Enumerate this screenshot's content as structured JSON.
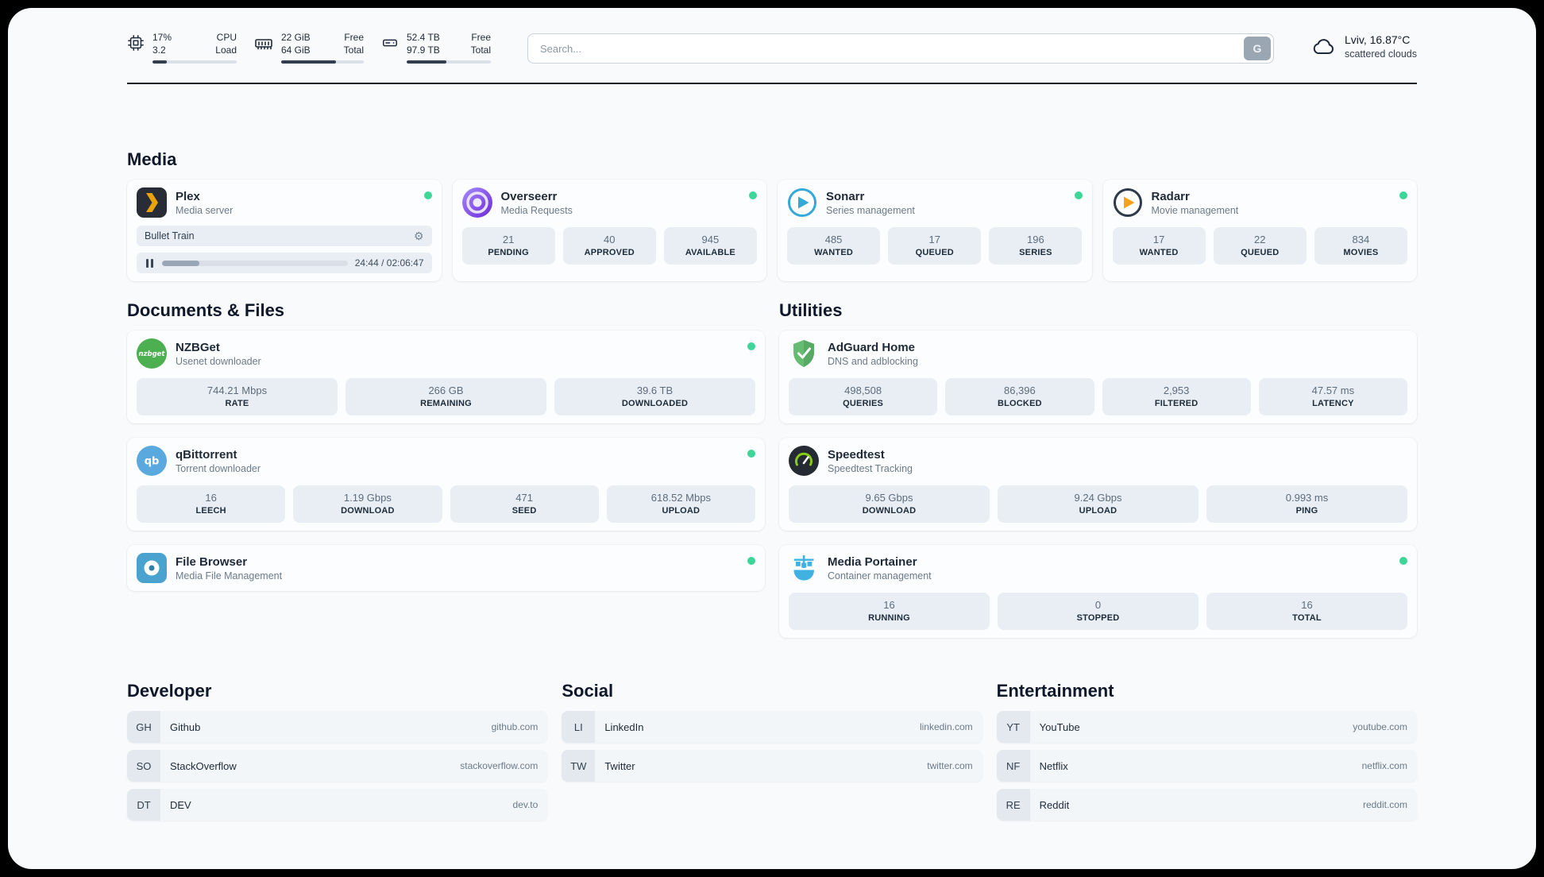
{
  "colors": {
    "status_online": "#3ed598"
  },
  "header": {
    "stats": [
      {
        "icon": "cpu-icon",
        "value_top": "17%",
        "value_bottom": "3.2",
        "label_top": "CPU",
        "label_bottom": "Load",
        "progress": 17
      },
      {
        "icon": "memory-icon",
        "value_top": "22 GiB",
        "value_bottom": "64 GiB",
        "label_top": "Free",
        "label_bottom": "Total",
        "progress": 66
      },
      {
        "icon": "disk-icon",
        "value_top": "52.4 TB",
        "value_bottom": "97.9 TB",
        "label_top": "Free",
        "label_bottom": "Total",
        "progress": 47
      }
    ],
    "search": {
      "placeholder": "Search...",
      "button_label": "G"
    },
    "weather": {
      "icon": "cloud-icon",
      "location": "Lviv, 16.87°C",
      "condition": "scattered clouds"
    }
  },
  "media": {
    "title": "Media",
    "plex": {
      "icon": "plex-icon",
      "title": "Plex",
      "subtitle": "Media server",
      "now_playing": "Bullet Train",
      "time": "24:44 / 02:06:47",
      "progress_percent": 20
    },
    "overseerr": {
      "icon": "overseerr-icon",
      "title": "Overseerr",
      "subtitle": "Media Requests",
      "stats": [
        {
          "value": "21",
          "label": "PENDING"
        },
        {
          "value": "40",
          "label": "APPROVED"
        },
        {
          "value": "945",
          "label": "AVAILABLE"
        }
      ]
    },
    "sonarr": {
      "icon": "sonarr-icon",
      "title": "Sonarr",
      "subtitle": "Series management",
      "stats": [
        {
          "value": "485",
          "label": "WANTED"
        },
        {
          "value": "17",
          "label": "QUEUED"
        },
        {
          "value": "196",
          "label": "SERIES"
        }
      ]
    },
    "radarr": {
      "icon": "radarr-icon",
      "title": "Radarr",
      "subtitle": "Movie management",
      "stats": [
        {
          "value": "17",
          "label": "WANTED"
        },
        {
          "value": "22",
          "label": "QUEUED"
        },
        {
          "value": "834",
          "label": "MOVIES"
        }
      ]
    }
  },
  "documents": {
    "title": "Documents & Files",
    "nzbget": {
      "icon": "nzbget-icon",
      "title": "NZBGet",
      "subtitle": "Usenet downloader",
      "stats": [
        {
          "value": "744.21 Mbps",
          "label": "RATE"
        },
        {
          "value": "266 GB",
          "label": "REMAINING"
        },
        {
          "value": "39.6 TB",
          "label": "DOWNLOADED"
        }
      ]
    },
    "qbittorrent": {
      "icon": "qbittorrent-icon",
      "title": "qBittorrent",
      "subtitle": "Torrent downloader",
      "stats": [
        {
          "value": "16",
          "label": "LEECH"
        },
        {
          "value": "1.19 Gbps",
          "label": "DOWNLOAD"
        },
        {
          "value": "471",
          "label": "SEED"
        },
        {
          "value": "618.52 Mbps",
          "label": "UPLOAD"
        }
      ]
    },
    "filebrowser": {
      "icon": "filebrowser-icon",
      "title": "File Browser",
      "subtitle": "Media File Management"
    }
  },
  "utilities": {
    "title": "Utilities",
    "adguard": {
      "icon": "adguard-icon",
      "title": "AdGuard Home",
      "subtitle": "DNS and adblocking",
      "stats": [
        {
          "value": "498,508",
          "label": "QUERIES"
        },
        {
          "value": "86,396",
          "label": "BLOCKED"
        },
        {
          "value": "2,953",
          "label": "FILTERED"
        },
        {
          "value": "47.57 ms",
          "label": "LATENCY"
        }
      ]
    },
    "speedtest": {
      "icon": "speedtest-icon",
      "title": "Speedtest",
      "subtitle": "Speedtest Tracking",
      "stats": [
        {
          "value": "9.65 Gbps",
          "label": "DOWNLOAD"
        },
        {
          "value": "9.24 Gbps",
          "label": "UPLOAD"
        },
        {
          "value": "0.993 ms",
          "label": "PING"
        }
      ]
    },
    "portainer": {
      "icon": "portainer-icon",
      "title": "Media Portainer",
      "subtitle": "Container management",
      "stats": [
        {
          "value": "16",
          "label": "RUNNING"
        },
        {
          "value": "0",
          "label": "STOPPED"
        },
        {
          "value": "16",
          "label": "TOTAL"
        }
      ]
    }
  },
  "bookmarks": [
    {
      "title": "Developer",
      "items": [
        {
          "abbr": "GH",
          "name": "Github",
          "domain": "github.com"
        },
        {
          "abbr": "SO",
          "name": "StackOverflow",
          "domain": "stackoverflow.com"
        },
        {
          "abbr": "DT",
          "name": "DEV",
          "domain": "dev.to"
        }
      ]
    },
    {
      "title": "Social",
      "items": [
        {
          "abbr": "LI",
          "name": "LinkedIn",
          "domain": "linkedin.com"
        },
        {
          "abbr": "TW",
          "name": "Twitter",
          "domain": "twitter.com"
        }
      ]
    },
    {
      "title": "Entertainment",
      "items": [
        {
          "abbr": "YT",
          "name": "YouTube",
          "domain": "youtube.com"
        },
        {
          "abbr": "NF",
          "name": "Netflix",
          "domain": "netflix.com"
        },
        {
          "abbr": "RE",
          "name": "Reddit",
          "domain": "reddit.com"
        }
      ]
    }
  ]
}
